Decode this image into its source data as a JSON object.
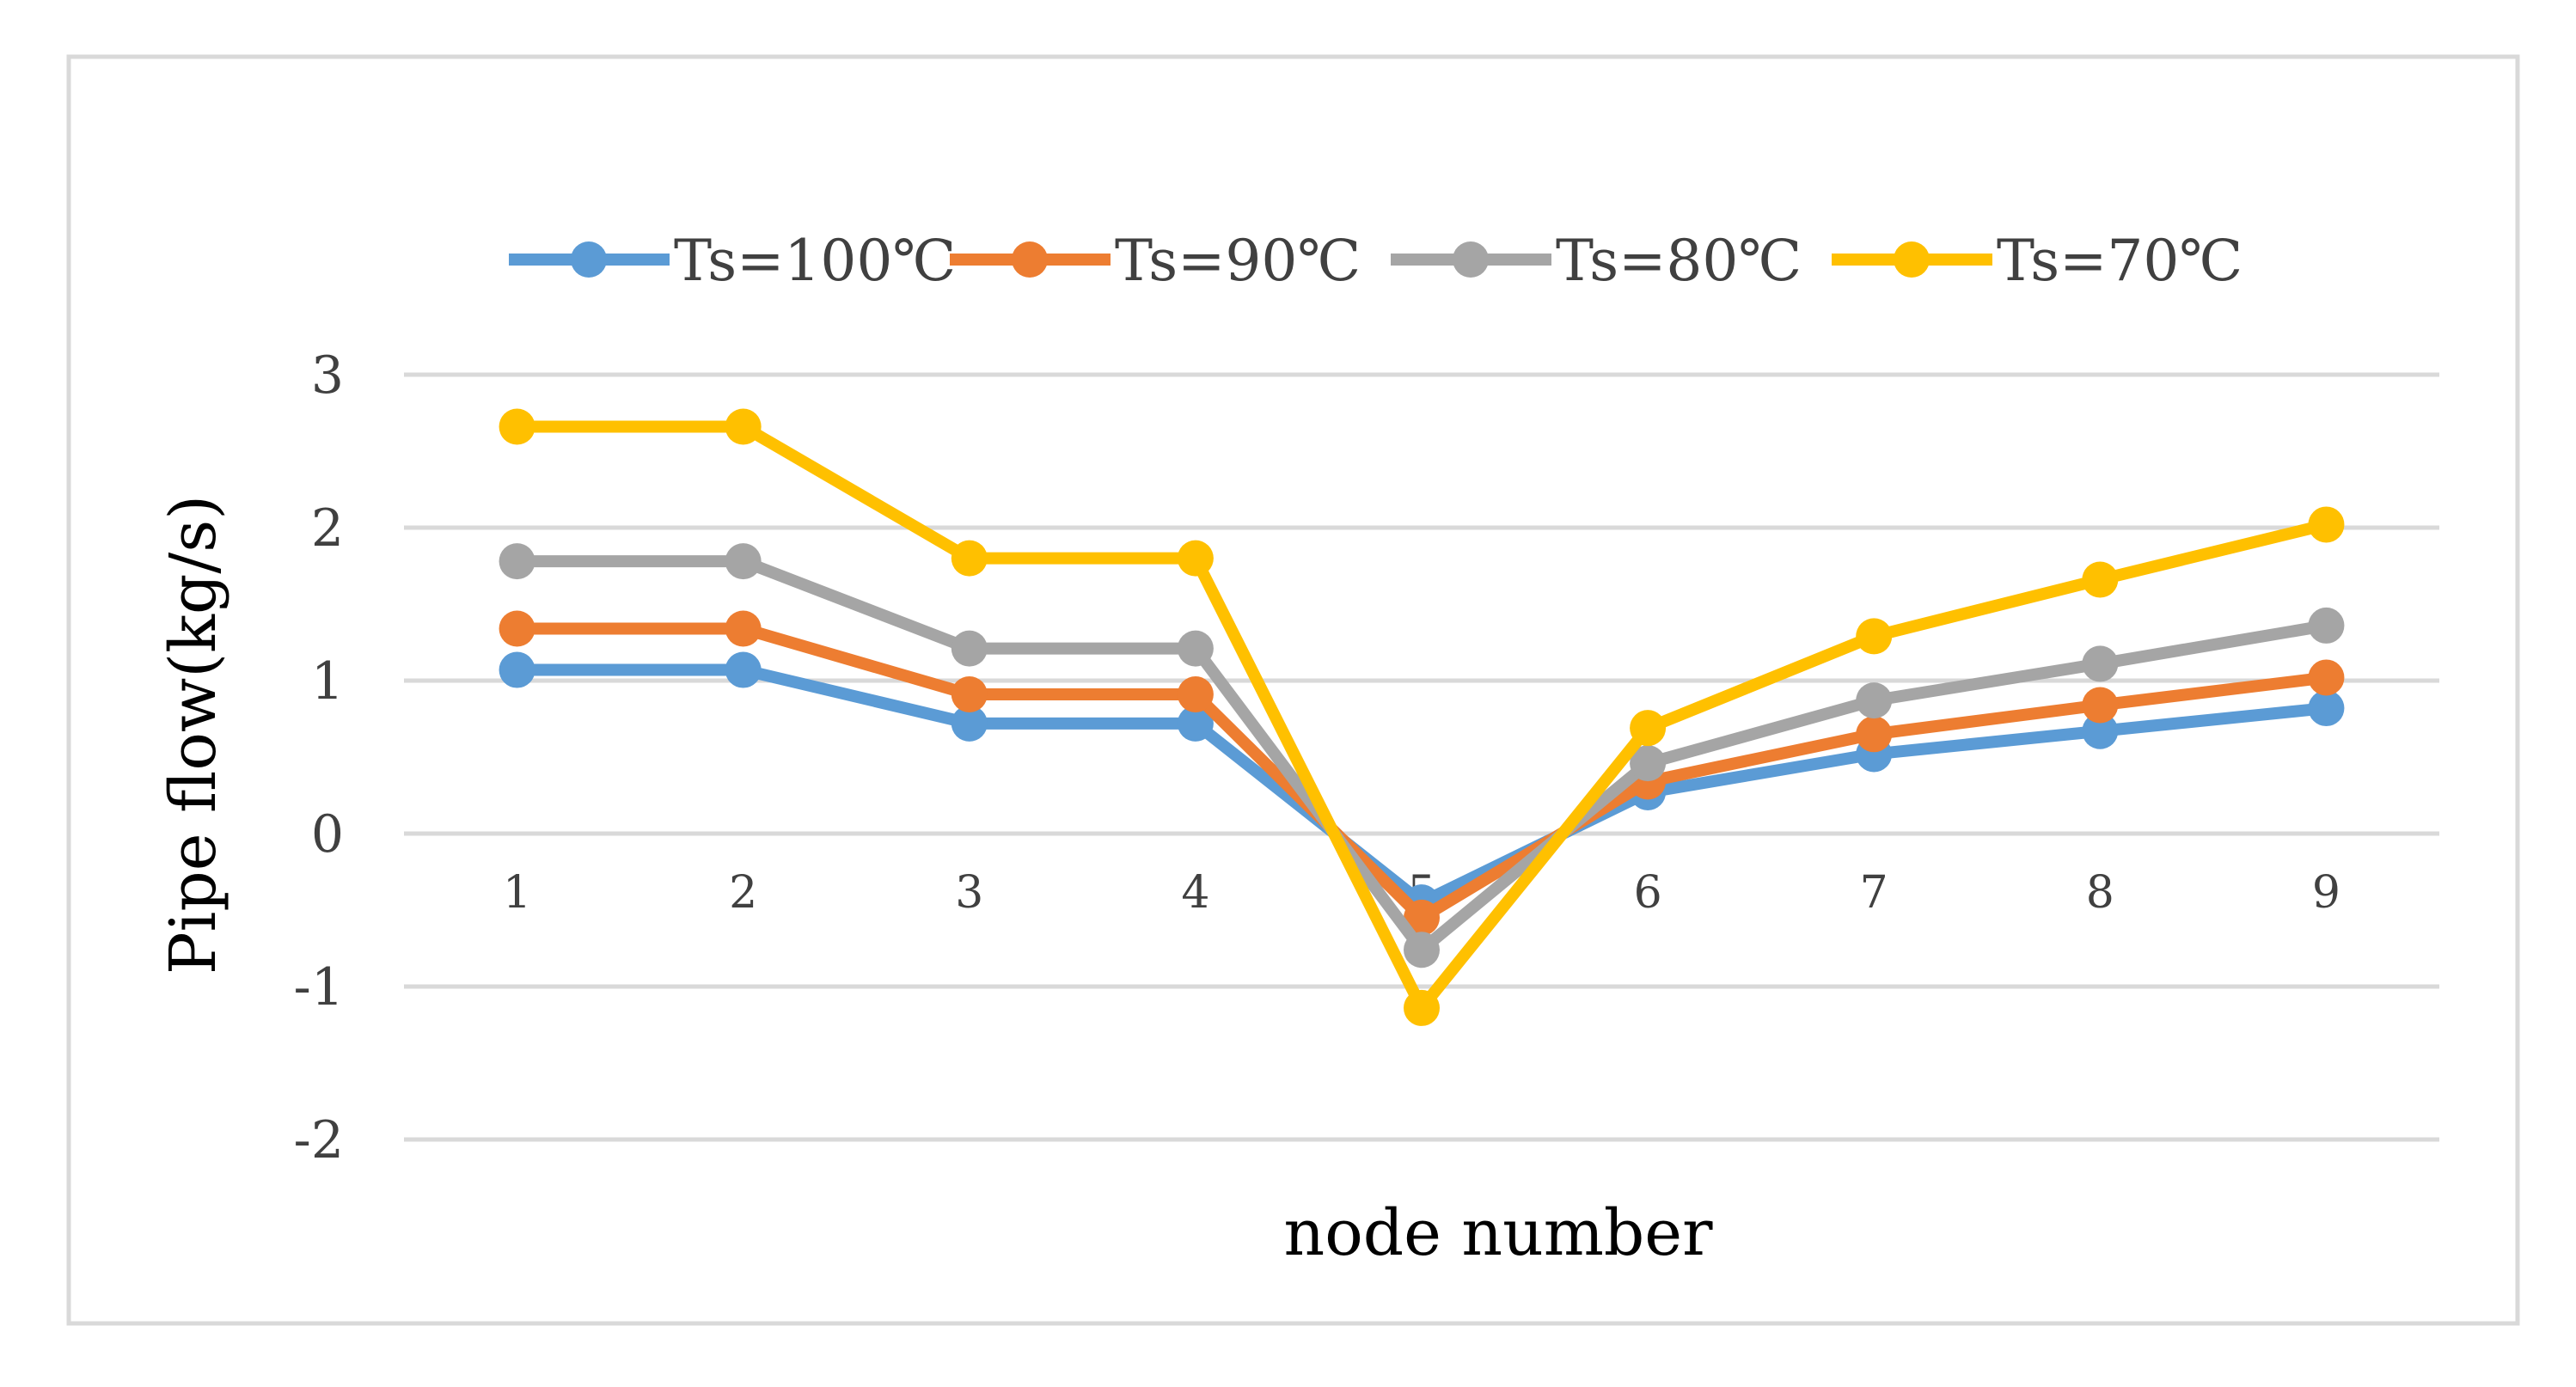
{
  "chart_data": {
    "type": "line",
    "title": "",
    "xlabel": "node number",
    "ylabel": "Pipe flow(kg/s)",
    "categories": [
      "1",
      "2",
      "3",
      "4",
      "5",
      "6",
      "7",
      "8",
      "9"
    ],
    "yticks": [
      "3",
      "2",
      "1",
      "0",
      "-1",
      "-2"
    ],
    "ylim": [
      -2,
      3
    ],
    "grid": true,
    "legend_position": "top",
    "series": [
      {
        "name": "Ts=100℃",
        "color": "#5b9bd5",
        "values": [
          1.07,
          1.07,
          0.72,
          0.72,
          -0.45,
          0.27,
          0.52,
          0.67,
          0.82
        ]
      },
      {
        "name": "Ts=90℃",
        "color": "#ed7d31",
        "values": [
          1.34,
          1.34,
          0.91,
          0.91,
          -0.55,
          0.34,
          0.65,
          0.84,
          1.02
        ]
      },
      {
        "name": "Ts=80℃",
        "color": "#a5a5a5",
        "values": [
          1.78,
          1.78,
          1.21,
          1.21,
          -0.76,
          0.46,
          0.87,
          1.11,
          1.36
        ]
      },
      {
        "name": "Ts=70℃",
        "color": "#ffc000",
        "values": [
          2.66,
          2.66,
          1.8,
          1.8,
          -1.14,
          0.69,
          1.29,
          1.66,
          2.02
        ]
      }
    ]
  }
}
